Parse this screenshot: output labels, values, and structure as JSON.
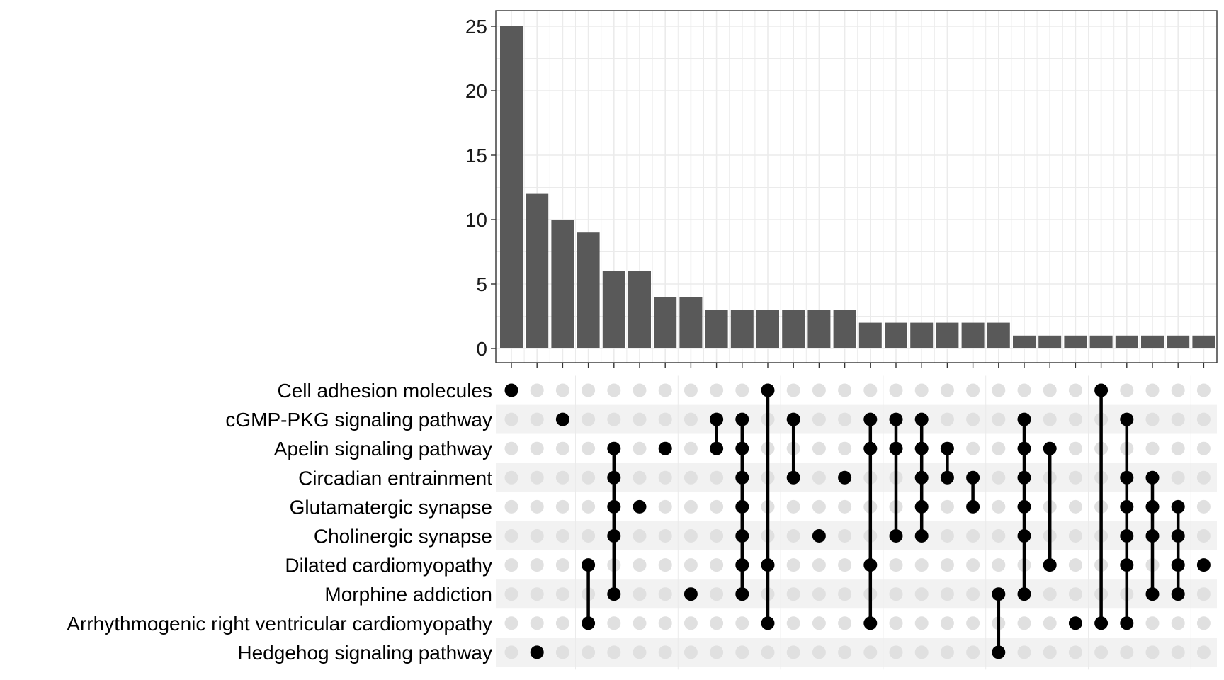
{
  "chart_data": {
    "type": "upset",
    "bar_ylim": [
      0,
      26
    ],
    "bar_yticks": [
      0,
      5,
      10,
      15,
      20,
      25
    ],
    "sets": [
      "Cell adhesion molecules",
      "cGMP-PKG signaling pathway",
      "Apelin signaling pathway",
      "Circadian entrainment",
      "Glutamatergic synapse",
      "Cholinergic synapse",
      "Dilated cardiomyopathy",
      "Morphine addiction",
      "Arrhythmogenic right ventricular cardiomyopathy",
      "Hedgehog signaling pathway"
    ],
    "intersections": [
      {
        "size": 25,
        "members": [
          0
        ]
      },
      {
        "size": 12,
        "members": [
          9
        ]
      },
      {
        "size": 10,
        "members": [
          1
        ]
      },
      {
        "size": 9,
        "members": [
          6,
          8
        ]
      },
      {
        "size": 6,
        "members": [
          2,
          3,
          4,
          5,
          7
        ]
      },
      {
        "size": 6,
        "members": [
          4
        ]
      },
      {
        "size": 4,
        "members": [
          2
        ]
      },
      {
        "size": 4,
        "members": [
          7
        ]
      },
      {
        "size": 3,
        "members": [
          1,
          2
        ]
      },
      {
        "size": 3,
        "members": [
          1,
          2,
          3,
          4,
          5,
          6,
          7
        ]
      },
      {
        "size": 3,
        "members": [
          0,
          6,
          8
        ]
      },
      {
        "size": 3,
        "members": [
          1,
          3
        ]
      },
      {
        "size": 3,
        "members": [
          5
        ]
      },
      {
        "size": 3,
        "members": [
          3
        ]
      },
      {
        "size": 2,
        "members": [
          1,
          2,
          6,
          8
        ]
      },
      {
        "size": 2,
        "members": [
          1,
          2,
          5
        ]
      },
      {
        "size": 2,
        "members": [
          1,
          2,
          3,
          4,
          5
        ]
      },
      {
        "size": 2,
        "members": [
          2,
          3
        ]
      },
      {
        "size": 2,
        "members": [
          3,
          4
        ]
      },
      {
        "size": 2,
        "members": [
          7,
          9
        ]
      },
      {
        "size": 1,
        "members": [
          1,
          2,
          3,
          4,
          5,
          7
        ]
      },
      {
        "size": 1,
        "members": [
          2,
          6
        ]
      },
      {
        "size": 1,
        "members": [
          8
        ]
      },
      {
        "size": 1,
        "members": [
          0,
          8
        ]
      },
      {
        "size": 1,
        "members": [
          1,
          3,
          4,
          5,
          6,
          8
        ]
      },
      {
        "size": 1,
        "members": [
          3,
          4,
          5,
          7
        ]
      },
      {
        "size": 1,
        "members": [
          4,
          5,
          6,
          7
        ]
      },
      {
        "size": 1,
        "members": [
          6
        ]
      }
    ],
    "colors": {
      "bar": "#595959",
      "dot_active": "#000000",
      "dot_inactive": "#e0e0e0",
      "stripe": "#f2f2f2",
      "grid": "#ebebeb",
      "panel_border": "#333333"
    }
  }
}
